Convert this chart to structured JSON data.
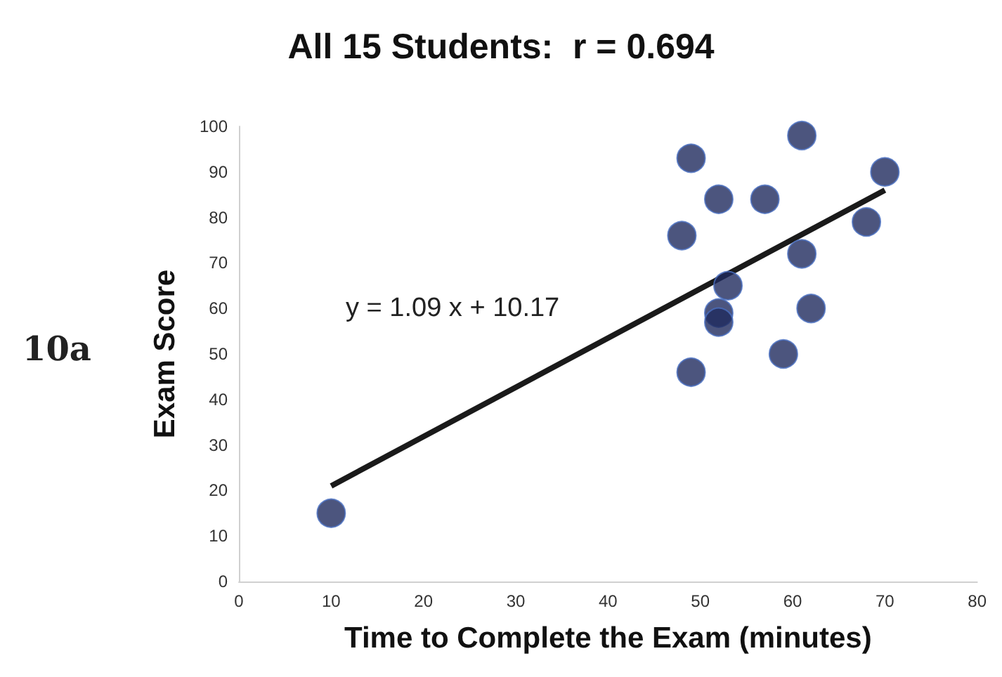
{
  "chart_data": {
    "type": "scatter",
    "title": "All 15 Students:  r = 0.694",
    "xlabel": "Time to Complete the Exam (minutes)",
    "ylabel": "Exam Score",
    "annotations": [
      "10a",
      "y = 1.09 x + 10.17"
    ],
    "xlim": [
      0,
      80
    ],
    "xticks": [
      0,
      10,
      20,
      30,
      40,
      50,
      60,
      70,
      80
    ],
    "ylim": [
      0,
      100
    ],
    "yticks": [
      0,
      10,
      20,
      30,
      40,
      50,
      60,
      70,
      80,
      90,
      100
    ],
    "grid": false,
    "marker": "circle",
    "series": [
      {
        "color": "#1f2a5e",
        "x": [
          10,
          49,
          61,
          70,
          68,
          57,
          52,
          48,
          61,
          53,
          52,
          52,
          62,
          59,
          49
        ],
        "values": [
          15,
          93,
          98,
          90,
          79,
          84,
          84,
          76,
          72,
          65,
          59,
          57,
          60,
          50,
          46
        ]
      },
      {
        "type": "line",
        "color": "#1a1a1a",
        "x": [
          10,
          70
        ],
        "values": [
          21,
          86
        ],
        "marker": "none",
        "line_style": "solid"
      }
    ]
  }
}
